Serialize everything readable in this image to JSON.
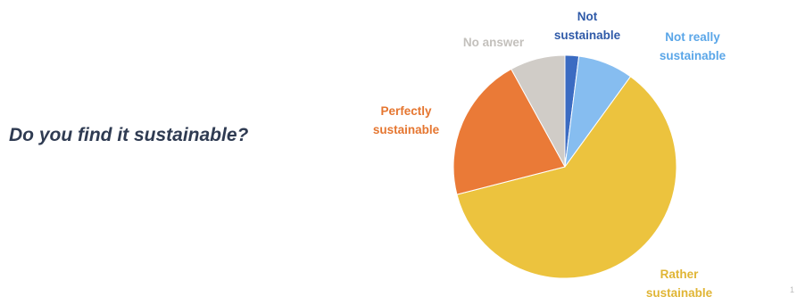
{
  "question": "Do you find it sustainable?",
  "page_number": "1",
  "chart_data": {
    "type": "pie",
    "title": "",
    "start_angle_deg": 0,
    "direction": "clockwise",
    "slices": [
      {
        "label": [
          "Not",
          "sustainable"
        ],
        "value": 2,
        "color": "#3b6bc2",
        "label_color": "#2f5aa8"
      },
      {
        "label": [
          "Not really",
          "sustainable"
        ],
        "value": 8,
        "color": "#86bdf0",
        "label_color": "#5aa6e8"
      },
      {
        "label": [
          "Rather",
          "sustainable"
        ],
        "value": 61,
        "color": "#ecc33e",
        "label_color": "#e0b535"
      },
      {
        "label": [
          "Perfectly",
          "sustainable"
        ],
        "value": 21,
        "color": "#ea7a37",
        "label_color": "#e57630"
      },
      {
        "label": [
          "No answer"
        ],
        "value": 8,
        "color": "#d0ccc7",
        "label_color": "#c3c0bc"
      }
    ]
  }
}
